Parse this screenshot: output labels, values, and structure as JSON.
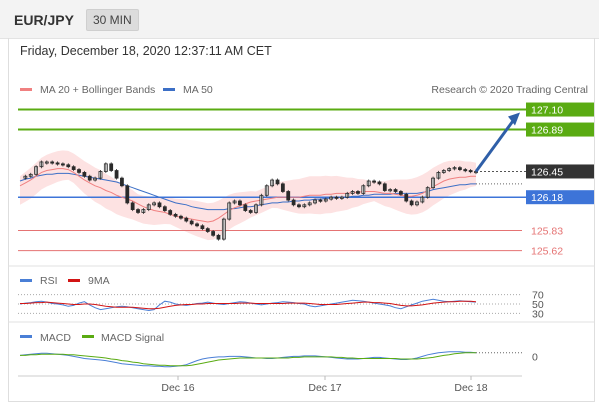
{
  "header": {
    "pair": "EUR/JPY",
    "timeframe": "30 MIN"
  },
  "datetime": "Friday, December 18, 2020 12:37:11 AM CET",
  "colors": {
    "ma20": "#f08080",
    "ma50": "#3c6fc6",
    "resistance": "#5aab12",
    "support_strong": "#3d74d8",
    "support_weak": "#e57373",
    "last": "#333333",
    "band": "#fde2e2",
    "rsi": "#4a7fd6",
    "signal9": "#d21414",
    "macd": "#4a7fd6",
    "macd_signal": "#5aab12"
  },
  "chart_data": {
    "type": "line",
    "title": "EUR/JPY",
    "legend": [
      "MA 20 + Bollinger Bands",
      "MA 50"
    ],
    "copyright": "Research © 2020 Trading Central",
    "x_ticks": [
      "Dec 16",
      "Dec 17",
      "Dec 18"
    ],
    "ylim": [
      125.5,
      127.2
    ],
    "levels": [
      {
        "label": "127.10",
        "value": 127.1,
        "kind": "resistance"
      },
      {
        "label": "126.89",
        "value": 126.89,
        "kind": "resistance"
      },
      {
        "label": "126.45",
        "value": 126.45,
        "kind": "last"
      },
      {
        "label": "126.18",
        "value": 126.18,
        "kind": "pivot"
      },
      {
        "label": "125.83",
        "value": 125.83,
        "kind": "support"
      },
      {
        "label": "125.62",
        "value": 125.62,
        "kind": "support"
      }
    ],
    "price": [
      126.38,
      126.4,
      126.42,
      126.5,
      126.55,
      126.55,
      126.54,
      126.53,
      126.52,
      126.5,
      126.47,
      126.44,
      126.4,
      126.36,
      126.38,
      126.45,
      126.53,
      126.46,
      126.38,
      126.3,
      126.12,
      126.05,
      126.02,
      126.05,
      126.1,
      126.12,
      126.08,
      126.04,
      126.0,
      125.98,
      125.96,
      125.93,
      125.9,
      125.88,
      125.85,
      125.82,
      125.78,
      125.74,
      125.95,
      126.12,
      126.14,
      126.1,
      126.04,
      126.02,
      126.1,
      126.2,
      126.3,
      126.36,
      126.32,
      126.24,
      126.15,
      126.1,
      126.08,
      126.1,
      126.12,
      126.15,
      126.14,
      126.16,
      126.18,
      126.17,
      126.18,
      126.22,
      126.24,
      126.22,
      126.3,
      126.35,
      126.34,
      126.32,
      126.25,
      126.26,
      126.24,
      126.21,
      126.14,
      126.1,
      126.13,
      126.18,
      126.28,
      126.38,
      126.44,
      126.46,
      126.48,
      126.49,
      126.47,
      126.46,
      126.45,
      126.45
    ],
    "ma20": [
      126.3,
      126.33,
      126.36,
      126.4,
      126.44,
      126.46,
      126.47,
      126.48,
      126.48,
      126.47,
      126.44,
      126.4,
      126.36,
      126.33,
      126.3,
      126.28,
      126.25,
      126.23,
      126.2,
      126.18,
      126.16,
      126.14,
      126.11,
      126.08,
      126.06,
      126.04,
      126.03,
      126.02,
      126.0,
      125.98,
      125.97,
      125.96,
      125.95,
      125.94,
      125.93,
      125.92,
      125.93,
      125.96,
      126.0,
      126.04,
      126.07,
      126.09,
      126.11,
      126.13,
      126.14,
      126.15,
      126.16,
      126.17,
      126.18,
      126.18,
      126.18,
      126.18,
      126.18,
      126.19,
      126.2,
      126.2,
      126.2,
      126.21,
      126.21,
      126.22,
      126.22,
      126.22,
      126.23,
      126.23,
      126.24,
      126.24,
      126.24,
      126.23,
      126.22,
      126.22,
      126.21,
      126.2,
      126.19,
      126.19,
      126.2,
      126.22,
      126.25,
      126.29,
      126.32,
      126.35,
      126.37,
      126.38,
      126.39,
      126.39,
      126.4,
      126.4
    ],
    "ma50": [
      126.35,
      126.37,
      126.38,
      126.4,
      126.41,
      126.42,
      126.42,
      126.43,
      126.43,
      126.43,
      126.42,
      126.41,
      126.4,
      126.39,
      126.38,
      126.37,
      126.36,
      126.35,
      126.34,
      126.32,
      126.3,
      126.28,
      126.26,
      126.24,
      126.22,
      126.2,
      126.18,
      126.16,
      126.14,
      126.12,
      126.11,
      126.1,
      126.08,
      126.07,
      126.06,
      126.05,
      126.05,
      126.05,
      126.05,
      126.06,
      126.06,
      126.07,
      126.08,
      126.08,
      126.09,
      126.1,
      126.11,
      126.12,
      126.12,
      126.13,
      126.13,
      126.14,
      126.14,
      126.15,
      126.15,
      126.16,
      126.16,
      126.17,
      126.17,
      126.18,
      126.18,
      126.18,
      126.19,
      126.19,
      126.2,
      126.2,
      126.21,
      126.21,
      126.21,
      126.21,
      126.22,
      126.22,
      126.22,
      126.22,
      126.22,
      126.23,
      126.24,
      126.26,
      126.27,
      126.28,
      126.29,
      126.3,
      126.31,
      126.31,
      126.32,
      126.32
    ],
    "indicators": {
      "rsi": {
        "legend": [
          "RSI",
          "9MA"
        ],
        "levels": [
          "70",
          "50",
          "30"
        ],
        "ylim": [
          20,
          80
        ],
        "rsi": [
          50,
          52,
          53,
          55,
          56,
          54,
          51,
          50,
          48,
          45,
          47,
          52,
          55,
          48,
          42,
          38,
          40,
          42,
          44,
          45,
          44,
          42,
          40,
          38,
          36,
          38,
          48,
          56,
          54,
          50,
          48,
          47,
          49,
          51,
          52,
          54,
          52,
          50,
          49,
          51,
          53,
          55,
          54,
          52,
          50,
          48,
          50,
          52,
          53,
          55,
          54,
          53,
          51,
          50,
          46,
          44,
          46,
          48,
          50,
          52,
          54,
          56,
          58,
          57,
          56,
          54,
          52,
          50,
          48,
          46,
          42,
          40,
          44,
          48,
          52,
          56,
          58,
          60,
          58,
          56,
          55,
          56,
          57,
          56,
          55,
          54
        ],
        "ma9": [
          51,
          51,
          52,
          53,
          53,
          54,
          53,
          52,
          51,
          50,
          49,
          49,
          50,
          50,
          49,
          47,
          45,
          44,
          43,
          43,
          43,
          43,
          42,
          41,
          40,
          40,
          41,
          43,
          45,
          47,
          48,
          49,
          49,
          50,
          50,
          51,
          51,
          51,
          51,
          51,
          51,
          52,
          52,
          52,
          51,
          51,
          51,
          51,
          51,
          51,
          52,
          52,
          52,
          52,
          51,
          50,
          49,
          49,
          49,
          49,
          50,
          51,
          52,
          53,
          54,
          54,
          53,
          53,
          52,
          51,
          49,
          47,
          46,
          46,
          47,
          48,
          50,
          52,
          53,
          54,
          55,
          55,
          56,
          56,
          56,
          55
        ]
      },
      "macd": {
        "legend": [
          "MACD",
          "MACD Signal"
        ],
        "levels": [
          "0"
        ],
        "ylim": [
          -0.3,
          0.2
        ],
        "macd": [
          0.02,
          0.03,
          0.04,
          0.05,
          0.06,
          0.06,
          0.05,
          0.04,
          0.03,
          0.02,
          0.0,
          -0.02,
          -0.04,
          -0.05,
          -0.06,
          -0.07,
          -0.08,
          -0.1,
          -0.12,
          -0.14,
          -0.15,
          -0.16,
          -0.17,
          -0.18,
          -0.18,
          -0.19,
          -0.19,
          -0.2,
          -0.2,
          -0.19,
          -0.18,
          -0.16,
          -0.12,
          -0.08,
          -0.05,
          -0.03,
          -0.02,
          -0.01,
          -0.01,
          0.0,
          0.0,
          0.0,
          -0.01,
          -0.02,
          -0.03,
          -0.03,
          -0.04,
          -0.04,
          -0.03,
          -0.02,
          -0.01,
          0.0,
          0.0,
          0.01,
          0.01,
          0.01,
          0.0,
          -0.01,
          -0.02,
          -0.03,
          -0.04,
          -0.05,
          -0.05,
          -0.05,
          -0.04,
          -0.03,
          -0.02,
          -0.02,
          -0.03,
          -0.04,
          -0.05,
          -0.06,
          -0.06,
          -0.05,
          -0.03,
          0.0,
          0.03,
          0.05,
          0.07,
          0.08,
          0.09,
          0.09,
          0.09,
          0.08,
          0.08,
          0.07
        ],
        "signal": [
          0.02,
          0.02,
          0.03,
          0.03,
          0.04,
          0.04,
          0.04,
          0.04,
          0.04,
          0.03,
          0.03,
          0.02,
          0.01,
          0.0,
          -0.01,
          -0.02,
          -0.03,
          -0.05,
          -0.06,
          -0.08,
          -0.09,
          -0.11,
          -0.12,
          -0.14,
          -0.15,
          -0.16,
          -0.17,
          -0.17,
          -0.18,
          -0.18,
          -0.18,
          -0.18,
          -0.17,
          -0.15,
          -0.13,
          -0.11,
          -0.09,
          -0.07,
          -0.06,
          -0.05,
          -0.04,
          -0.03,
          -0.03,
          -0.03,
          -0.03,
          -0.03,
          -0.03,
          -0.03,
          -0.03,
          -0.03,
          -0.03,
          -0.02,
          -0.02,
          -0.01,
          -0.01,
          -0.01,
          -0.01,
          -0.01,
          -0.01,
          -0.02,
          -0.02,
          -0.03,
          -0.03,
          -0.04,
          -0.04,
          -0.04,
          -0.04,
          -0.04,
          -0.04,
          -0.04,
          -0.04,
          -0.05,
          -0.05,
          -0.05,
          -0.05,
          -0.04,
          -0.03,
          -0.02,
          0.0,
          0.02,
          0.03,
          0.05,
          0.06,
          0.07,
          0.07,
          0.07
        ]
      }
    }
  }
}
